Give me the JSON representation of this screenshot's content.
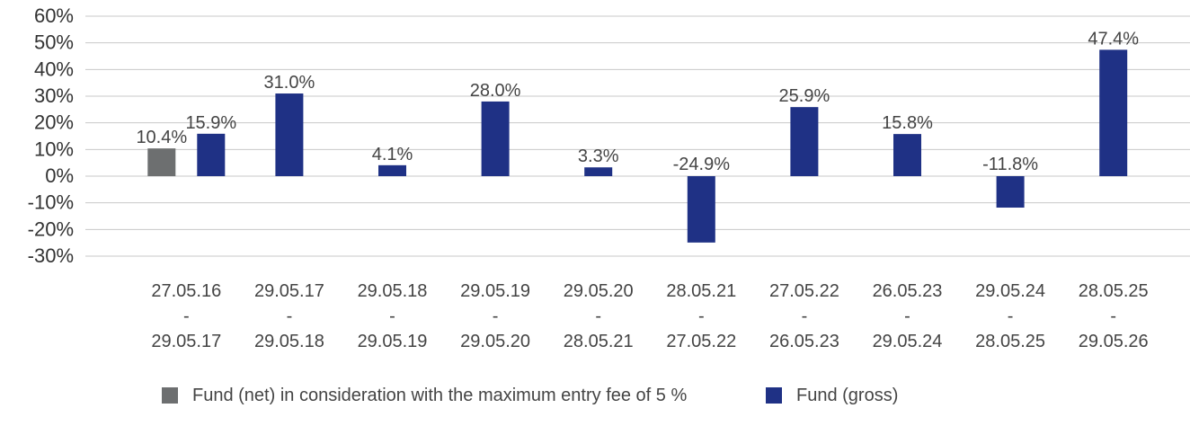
{
  "chart_data": {
    "type": "bar",
    "categories": [
      [
        "27.05.16",
        "-",
        "29.05.17"
      ],
      [
        "29.05.17",
        "-",
        "29.05.18"
      ],
      [
        "29.05.18",
        "-",
        "29.05.19"
      ],
      [
        "29.05.19",
        "-",
        "29.05.20"
      ],
      [
        "29.05.20",
        "-",
        "28.05.21"
      ],
      [
        "28.05.21",
        "-",
        "27.05.22"
      ],
      [
        "27.05.22",
        "-",
        "26.05.23"
      ],
      [
        "26.05.23",
        "-",
        "29.05.24"
      ],
      [
        "29.05.24",
        "-",
        "28.05.25"
      ],
      [
        "28.05.25",
        "-",
        "29.05.26"
      ]
    ],
    "series": [
      {
        "name": "Fund (net) in consideration with the maximum entry fee of 5 %",
        "color": "#6d6f70",
        "values": [
          10.4,
          null,
          null,
          null,
          null,
          null,
          null,
          null,
          null,
          null
        ],
        "labels": [
          "10.4%",
          "",
          "",
          "",
          "",
          "",
          "",
          "",
          "",
          ""
        ]
      },
      {
        "name": "Fund (gross)",
        "color": "#1f3185",
        "values": [
          15.9,
          31.0,
          4.1,
          28.0,
          3.3,
          -24.9,
          25.9,
          15.8,
          -11.8,
          47.4
        ],
        "labels": [
          "15.9%",
          "31.0%",
          "4.1%",
          "28.0%",
          "3.3%",
          "-24.9%",
          "25.9%",
          "15.8%",
          "-11.8%",
          "47.4%"
        ]
      }
    ],
    "y_ticks": [
      60,
      50,
      40,
      30,
      20,
      10,
      0,
      -10,
      -20,
      -30
    ],
    "y_tick_labels": [
      "60%",
      "50%",
      "40%",
      "30%",
      "20%",
      "10%",
      "0%",
      "-10%",
      "-20%",
      "-30%"
    ],
    "ylim": [
      -30,
      60
    ],
    "grid": true,
    "gridline_color": "#c8c8c8",
    "title": "",
    "xlabel": "",
    "ylabel": "",
    "legend_position": "bottom"
  }
}
